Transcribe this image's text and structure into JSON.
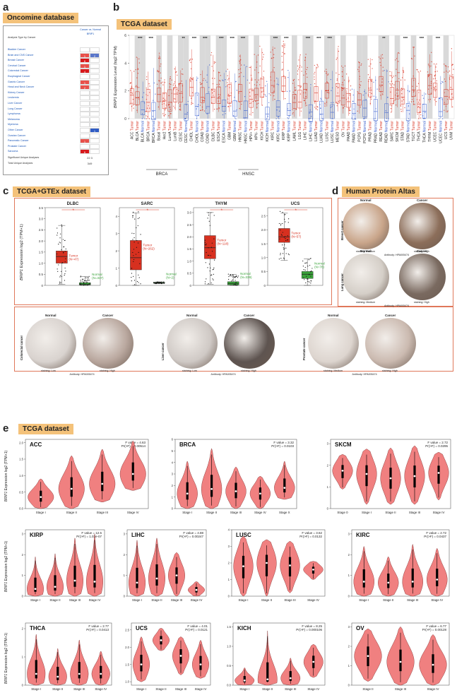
{
  "panels": {
    "a": "a",
    "b": "b",
    "c": "c",
    "d": "d",
    "e": "e"
  },
  "oncomine": {
    "title": "Oncomine database",
    "header": "Analysis Type by Cancer",
    "column_header": "Cancer vs. Normal BRIP1",
    "rows": [
      {
        "label": "Bladder Cancer",
        "up": "",
        "down": ""
      },
      {
        "label": "Brain and CNS Cancer",
        "up": "1",
        "down": "2"
      },
      {
        "label": "Breast Cancer",
        "up": "6",
        "down": ""
      },
      {
        "label": "Cervical Cancer",
        "up": "1",
        "down": ""
      },
      {
        "label": "Colorectal Cancer",
        "up": "4",
        "down": ""
      },
      {
        "label": "Esophageal Cancer",
        "up": "",
        "down": ""
      },
      {
        "label": "Gastric Cancer",
        "up": "1",
        "down": ""
      },
      {
        "label": "Head and Neck Cancer",
        "up": "2",
        "down": ""
      },
      {
        "label": "Kidney Cancer",
        "up": "",
        "down": ""
      },
      {
        "label": "Leukemia",
        "up": "",
        "down": ""
      },
      {
        "label": "Liver Cancer",
        "up": "",
        "down": ""
      },
      {
        "label": "Lung Cancer",
        "up": "",
        "down": ""
      },
      {
        "label": "Lymphoma",
        "up": "",
        "down": ""
      },
      {
        "label": "Melanoma",
        "up": "",
        "down": ""
      },
      {
        "label": "Myeloma",
        "up": "",
        "down": ""
      },
      {
        "label": "Other Cancer",
        "up": "",
        "down": "1"
      },
      {
        "label": "Ovarian Cancer",
        "up": "",
        "down": ""
      },
      {
        "label": "Pancreatic Cancer",
        "up": "1",
        "down": ""
      },
      {
        "label": "Prostate Cancer",
        "up": "",
        "down": ""
      },
      {
        "label": "Sarcoma",
        "up": "6",
        "down": ""
      }
    ],
    "sig_label": "Significant Unique Analyses",
    "sig_up": "22",
    "sig_down": "3",
    "total_label": "Total Unique Analyses",
    "total": "349"
  },
  "tcga_b": {
    "title": "TCGA dataset",
    "ylabel_gene": "BRIP1",
    "ylabel_rest": " Expression Level (log2 TPM)",
    "yticks": [
      "0",
      "2",
      "4",
      "6"
    ],
    "groups": [
      {
        "label": "BRCA",
        "tick": ""
      },
      {
        "label": "HNSC",
        "tick": ""
      }
    ],
    "subtypes": [
      "Basal",
      "Her2",
      "LumA",
      "LumB"
    ],
    "hnsc_sub": [
      "HPV+",
      "HPV-"
    ],
    "categories": [
      {
        "label": "ACC Tumor",
        "type": "tumor",
        "star": ""
      },
      {
        "label": "BLCA Tumor",
        "type": "tumor",
        "star": "***"
      },
      {
        "label": "BLCA Normal",
        "type": "normal",
        "star": ""
      },
      {
        "label": "BRCA Tumor",
        "type": "tumor",
        "star": "***"
      },
      {
        "label": "BRCA Normal",
        "type": "normal",
        "star": ""
      },
      {
        "label": "Basal Tumor",
        "type": "tumor",
        "star": ""
      },
      {
        "label": "Her2 Tumor",
        "type": "tumor",
        "star": ""
      },
      {
        "label": "LumA Tumor",
        "type": "tumor",
        "star": ""
      },
      {
        "label": "LumB Tumor",
        "type": "tumor",
        "star": ""
      },
      {
        "label": "CESC Tumor",
        "type": "tumor",
        "star": "**"
      },
      {
        "label": "CESC Normal",
        "type": "normal",
        "star": ""
      },
      {
        "label": "CHOL Tumor",
        "type": "tumor",
        "star": "***"
      },
      {
        "label": "CHOL Normal",
        "type": "normal",
        "star": ""
      },
      {
        "label": "COAD Tumor",
        "type": "tumor",
        "star": "***"
      },
      {
        "label": "COAD Normal",
        "type": "normal",
        "star": ""
      },
      {
        "label": "DLBC Tumor",
        "type": "tumor",
        "star": ""
      },
      {
        "label": "ESCA Tumor",
        "type": "tumor",
        "star": "***"
      },
      {
        "label": "ESCA Normal",
        "type": "normal",
        "star": ""
      },
      {
        "label": "GBM Tumor",
        "type": "tumor",
        "star": "***"
      },
      {
        "label": "GBM Normal",
        "type": "normal",
        "star": ""
      },
      {
        "label": "HNSC Tumor",
        "type": "tumor",
        "star": "***"
      },
      {
        "label": "HNSC Normal",
        "type": "normal",
        "star": ""
      },
      {
        "label": "HPV+ Tumor",
        "type": "tumor",
        "star": ""
      },
      {
        "label": "HPV- Tumor",
        "type": "tumor",
        "star": ""
      },
      {
        "label": "KICH Tumor",
        "type": "tumor",
        "star": ""
      },
      {
        "label": "KICH Normal",
        "type": "normal",
        "star": ""
      },
      {
        "label": "KIRC Tumor",
        "type": "tumor",
        "star": "***"
      },
      {
        "label": "KIRC Normal",
        "type": "normal",
        "star": ""
      },
      {
        "label": "KIRP Tumor",
        "type": "tumor",
        "star": "***"
      },
      {
        "label": "KIRP Normal",
        "type": "normal",
        "star": ""
      },
      {
        "label": "LAML Tumor",
        "type": "tumor",
        "star": ""
      },
      {
        "label": "LGG Tumor",
        "type": "tumor",
        "star": ""
      },
      {
        "label": "LIHC Tumor",
        "type": "tumor",
        "star": "***"
      },
      {
        "label": "LIHC Normal",
        "type": "normal",
        "star": ""
      },
      {
        "label": "LUAD Tumor",
        "type": "tumor",
        "star": "***"
      },
      {
        "label": "LUAD Normal",
        "type": "normal",
        "star": ""
      },
      {
        "label": "LUSC Tumor",
        "type": "tumor",
        "star": "***"
      },
      {
        "label": "LUSC Normal",
        "type": "normal",
        "star": ""
      },
      {
        "label": "MESO Tumor",
        "type": "tumor",
        "star": ""
      },
      {
        "label": "OV Tumor",
        "type": "tumor",
        "star": ""
      },
      {
        "label": "PAAD Tumor",
        "type": "tumor",
        "star": ""
      },
      {
        "label": "PAAD Normal",
        "type": "normal",
        "star": ""
      },
      {
        "label": "PCPG Tumor",
        "type": "tumor",
        "star": ""
      },
      {
        "label": "PCPG Normal",
        "type": "normal",
        "star": ""
      },
      {
        "label": "PRAD Tumor",
        "type": "tumor",
        "star": ""
      },
      {
        "label": "PRAD Normal",
        "type": "normal",
        "star": ""
      },
      {
        "label": "READ Tumor",
        "type": "tumor",
        "star": "**"
      },
      {
        "label": "READ Normal",
        "type": "normal",
        "star": ""
      },
      {
        "label": "SARC Tumor",
        "type": "tumor",
        "star": ""
      },
      {
        "label": "SKCM Tumor",
        "type": "tumor",
        "star": ""
      },
      {
        "label": "STAD Tumor",
        "type": "tumor",
        "star": "***"
      },
      {
        "label": "STAD Normal",
        "type": "normal",
        "star": ""
      },
      {
        "label": "TGCT Tumor",
        "type": "tumor",
        "star": ""
      },
      {
        "label": "THCA Tumor",
        "type": "tumor",
        "star": "***"
      },
      {
        "label": "THCA Normal",
        "type": "normal",
        "star": ""
      },
      {
        "label": "THYM Tumor",
        "type": "tumor",
        "star": ""
      },
      {
        "label": "UCEC Tumor",
        "type": "tumor",
        "star": "***"
      },
      {
        "label": "UCEC Normal",
        "type": "normal",
        "star": ""
      },
      {
        "label": "UCS Tumor",
        "type": "tumor",
        "star": ""
      },
      {
        "label": "UVM Tumor",
        "type": "tumor",
        "star": ""
      }
    ]
  },
  "gtex": {
    "title": "TCGA+GTEx dataset",
    "ylabel_gene": "BRIP1",
    "ylabel_rest": " Expression log2 (TPM+1)",
    "star": "*"
  },
  "hpa": {
    "title": "Human Protein Altas",
    "normal": "Normal",
    "cancer": "Cancer",
    "antibody": "Antibody: HPA005474",
    "items": [
      {
        "tissue": "Breast cancer",
        "normal_stain": "staining: Medium",
        "cancer_stain": "staining: High",
        "nc": "#c9a58a",
        "cc": "#8c6e5a"
      },
      {
        "tissue": "Lung cancer",
        "normal_stain": "staining: Medium",
        "cancer_stain": "staining: High",
        "nc": "#d5cfc8",
        "cc": "#7a6a60"
      },
      {
        "tissue": "Colorectal cancer",
        "normal_stain": "staining: Low",
        "cancer_stain": "staining: High",
        "nc": "#d9d3cf",
        "cc": "#b9a79e"
      },
      {
        "tissue": "Liver cancer",
        "normal_stain": "staining: Low",
        "cancer_stain": "staining: High",
        "nc": "#cfc9c5",
        "cc": "#5e5450"
      },
      {
        "tissue": "Prostate cancer",
        "normal_stain": "staining: Medium",
        "cancer_stain": "staining: High",
        "nc": "#ddd5cf",
        "cc": "#cbbab0"
      }
    ]
  },
  "tcga_e": {
    "title": "TCGA dataset",
    "ylabel_gene": "BRIP1",
    "ylabel_rest": " Expression log2 (TPM+1)",
    "colors": {
      "violin": "#f08080",
      "violin_edge": "#7a2a2a"
    }
  },
  "chart_data": [
    {
      "type": "box",
      "title": "DLBC",
      "series": [
        {
          "name": "Tumor",
          "count": "(N=47)",
          "median": 1.3,
          "q1": 1.0,
          "q3": 1.55,
          "max": 2.7,
          "min": 0.05
        },
        {
          "name": "Normal",
          "count": "(N=337)",
          "median": 0.05,
          "q1": 0.02,
          "q3": 0.12,
          "max": 0.4,
          "min": 0.0
        }
      ],
      "yticks": [
        "0",
        "0.5",
        "1.0",
        "1.5",
        "2.0",
        "2.5",
        "3.0",
        "3.5"
      ],
      "ylim": [
        0,
        3.5
      ]
    },
    {
      "type": "box",
      "title": "SARC",
      "series": [
        {
          "name": "Tumor",
          "count": "(N=262)",
          "median": 1.6,
          "q1": 0.9,
          "q3": 2.6,
          "max": 4.2,
          "min": 0.0
        },
        {
          "name": "Normal",
          "count": "(N=2)",
          "median": 0.15,
          "q1": 0.12,
          "q3": 0.18,
          "max": 0.2,
          "min": 0.1
        }
      ],
      "yticks": [
        "0",
        "1",
        "2",
        "3",
        "4"
      ],
      "ylim": [
        0,
        4.5
      ]
    },
    {
      "type": "box",
      "title": "THYM",
      "series": [
        {
          "name": "Tumor",
          "count": "(N=118)",
          "median": 1.55,
          "q1": 1.1,
          "q3": 2.05,
          "max": 3.0,
          "min": 0.05
        },
        {
          "name": "Normal",
          "count": "(N=339)",
          "median": 0.08,
          "q1": 0.02,
          "q3": 0.15,
          "max": 0.45,
          "min": 0.0
        }
      ],
      "yticks": [
        "0",
        "0.5",
        "1.0",
        "1.5",
        "2.0",
        "2.5",
        "3.0"
      ],
      "ylim": [
        0,
        3.2
      ]
    },
    {
      "type": "box",
      "title": "UCS",
      "series": [
        {
          "name": "Tumor",
          "count": "(N=57)",
          "median": 1.75,
          "q1": 1.55,
          "q3": 2.05,
          "max": 2.6,
          "min": 0.9
        },
        {
          "name": "Normal",
          "count": "(N=78)",
          "median": 0.4,
          "q1": 0.25,
          "q3": 0.5,
          "max": 0.95,
          "min": 0.0
        }
      ],
      "yticks": [
        "0",
        "0.5",
        "1.0",
        "1.5",
        "2.0",
        "2.5"
      ],
      "ylim": [
        0,
        2.8
      ]
    },
    {
      "type": "violin",
      "title": "ACC",
      "fvalue": "F value = 4.63",
      "pr": "Pr(>F) = 0.00514",
      "yticks": [
        "0.0",
        "0.5",
        "1.0",
        "1.5",
        "2.0"
      ],
      "ylim": [
        0,
        2.1
      ],
      "categories": [
        "Stage I",
        "Stage II",
        "Stage III",
        "Stage IV"
      ],
      "values": [
        [
          0,
          0.9,
          0.35
        ],
        [
          0,
          1.6,
          0.6
        ],
        [
          0.2,
          1.8,
          0.75
        ],
        [
          0.55,
          2.05,
          1.05
        ]
      ]
    },
    {
      "type": "violin",
      "title": "BRCA",
      "fvalue": "F value = 3.32",
      "pr": "Pr(>F) = 0.0103",
      "yticks": [
        "0",
        "1",
        "2",
        "3",
        "4",
        "5",
        "6"
      ],
      "ylim": [
        0,
        6
      ],
      "categories": [
        "Stage I",
        "Stage II",
        "Stage III",
        "Stage IV",
        "Stage X"
      ],
      "values": [
        [
          0,
          4.1,
          1.3
        ],
        [
          0,
          5.2,
          1.7
        ],
        [
          0,
          3.6,
          1.5
        ],
        [
          0,
          2.8,
          1.3
        ],
        [
          0.8,
          4.1,
          1.8
        ]
      ]
    },
    {
      "type": "violin",
      "title": "SKCM",
      "fvalue": "F value = 2.72",
      "pr": "Pr(>F) = 0.0295",
      "yticks": [
        "0",
        "1",
        "2",
        "3"
      ],
      "ylim": [
        0,
        3.2
      ],
      "categories": [
        "Stage 0",
        "Stage I",
        "Stage II",
        "Stage III",
        "Stage IV"
      ],
      "values": [
        [
          0.9,
          2.5,
          1.75
        ],
        [
          0.2,
          2.75,
          1.6
        ],
        [
          0.2,
          2.8,
          1.4
        ],
        [
          0.2,
          2.9,
          1.5
        ],
        [
          0.4,
          2.6,
          1.65
        ]
      ]
    },
    {
      "type": "violin",
      "title": "KIRP",
      "fvalue": "F value = 12.5",
      "pr": "Pr(>F) = 1.02e-07",
      "yticks": [
        "0",
        "1",
        "2",
        "3"
      ],
      "ylim": [
        0,
        3.2
      ],
      "categories": [
        "Stage I",
        "Stage II",
        "Stage III",
        "Stage IV"
      ],
      "values": [
        [
          0,
          1.9,
          0.35
        ],
        [
          0,
          2.05,
          0.45
        ],
        [
          0,
          2.8,
          0.75
        ],
        [
          0,
          3.0,
          0.7
        ]
      ]
    },
    {
      "type": "violin",
      "title": "LIHC",
      "fvalue": "F value = 4.88",
      "pr": "Pr(>F) = 0.00247",
      "yticks": [
        "0",
        "1",
        "2",
        "3"
      ],
      "ylim": [
        0,
        3.2
      ],
      "categories": [
        "Stage I",
        "Stage II",
        "Stage III",
        "Stage IV"
      ],
      "values": [
        [
          0,
          2.7,
          0.65
        ],
        [
          0,
          2.8,
          0.85
        ],
        [
          0,
          2.1,
          1.0
        ],
        [
          0,
          0.7,
          0.3
        ]
      ]
    },
    {
      "type": "violin",
      "title": "LUSC",
      "fvalue": "F value = 3.62",
      "pr": "Pr(>F) = 0.0132",
      "yticks": [
        "0",
        "1",
        "2",
        "3",
        "4"
      ],
      "ylim": [
        0,
        4
      ],
      "categories": [
        "Stage I",
        "Stage II",
        "Stage III",
        "Stage IV"
      ],
      "values": [
        [
          0,
          3.6,
          1.8
        ],
        [
          0,
          3.4,
          2.0
        ],
        [
          0.2,
          3.3,
          1.85
        ],
        [
          1.0,
          2.1,
          1.6
        ]
      ]
    },
    {
      "type": "violin",
      "title": "KIRC",
      "fvalue": "F value = 2.72",
      "pr": "Pr(>F) = 0.0437",
      "yticks": [
        "0",
        "1",
        "2",
        "3"
      ],
      "ylim": [
        0,
        3.2
      ],
      "categories": [
        "Stage I",
        "Stage II",
        "Stage III",
        "Stage IV"
      ],
      "values": [
        [
          0,
          2.4,
          0.7
        ],
        [
          0,
          1.9,
          0.65
        ],
        [
          0,
          2.5,
          0.7
        ],
        [
          0,
          2.3,
          0.8
        ]
      ]
    },
    {
      "type": "violin",
      "title": "THCA",
      "fvalue": "F value = 2.77",
      "pr": "Pr(>F) = 0.0413",
      "yticks": [
        "0",
        "1",
        "2"
      ],
      "ylim": [
        0,
        2.2
      ],
      "categories": [
        "Stage I",
        "Stage II",
        "Stage III",
        "Stage IV"
      ],
      "values": [
        [
          0,
          1.8,
          0.4
        ],
        [
          0,
          1.3,
          0.3
        ],
        [
          0,
          1.6,
          0.4
        ],
        [
          0,
          1.2,
          0.4
        ]
      ]
    },
    {
      "type": "violin",
      "title": "UCS",
      "fvalue": "F value = 4.01",
      "pr": "Pr(>F) = 0.0121",
      "yticks": [
        "1.0",
        "1.5",
        "2.0",
        "2.5"
      ],
      "ylim": [
        0.9,
        2.7
      ],
      "categories": [
        "Stage I",
        "Stage II",
        "Stage III",
        "Stage IV"
      ],
      "values": [
        [
          1.0,
          2.3,
          1.5
        ],
        [
          1.9,
          2.55,
          2.2
        ],
        [
          1.2,
          2.3,
          1.75
        ],
        [
          1.1,
          2.2,
          1.5
        ]
      ]
    },
    {
      "type": "violin",
      "title": "KICH",
      "fvalue": "F value = 8.25",
      "pr": "Pr(>F) = 0.000106",
      "yticks": [
        "0.0",
        "0.5",
        "1.0",
        "1.5"
      ],
      "ylim": [
        0,
        1.6
      ],
      "categories": [
        "Stage I",
        "Stage II",
        "Stage III",
        "Stage IV"
      ],
      "values": [
        [
          0,
          0.45,
          0.12
        ],
        [
          0,
          1.4,
          0.15
        ],
        [
          0,
          0.7,
          0.18
        ],
        [
          0.2,
          1.05,
          0.6
        ]
      ]
    },
    {
      "type": "violin",
      "title": "OV",
      "fvalue": "F value = 6.77",
      "pr": "Pr(>F) = 0.00128",
      "yticks": [
        "0",
        "1",
        "2",
        "3"
      ],
      "ylim": [
        0,
        3.2
      ],
      "categories": [
        "Stage II",
        "Stage III",
        "Stage IV"
      ],
      "values": [
        [
          0.2,
          2.9,
          1.5
        ],
        [
          0,
          3.0,
          1.2
        ],
        [
          0,
          2.6,
          1.05
        ]
      ]
    }
  ]
}
